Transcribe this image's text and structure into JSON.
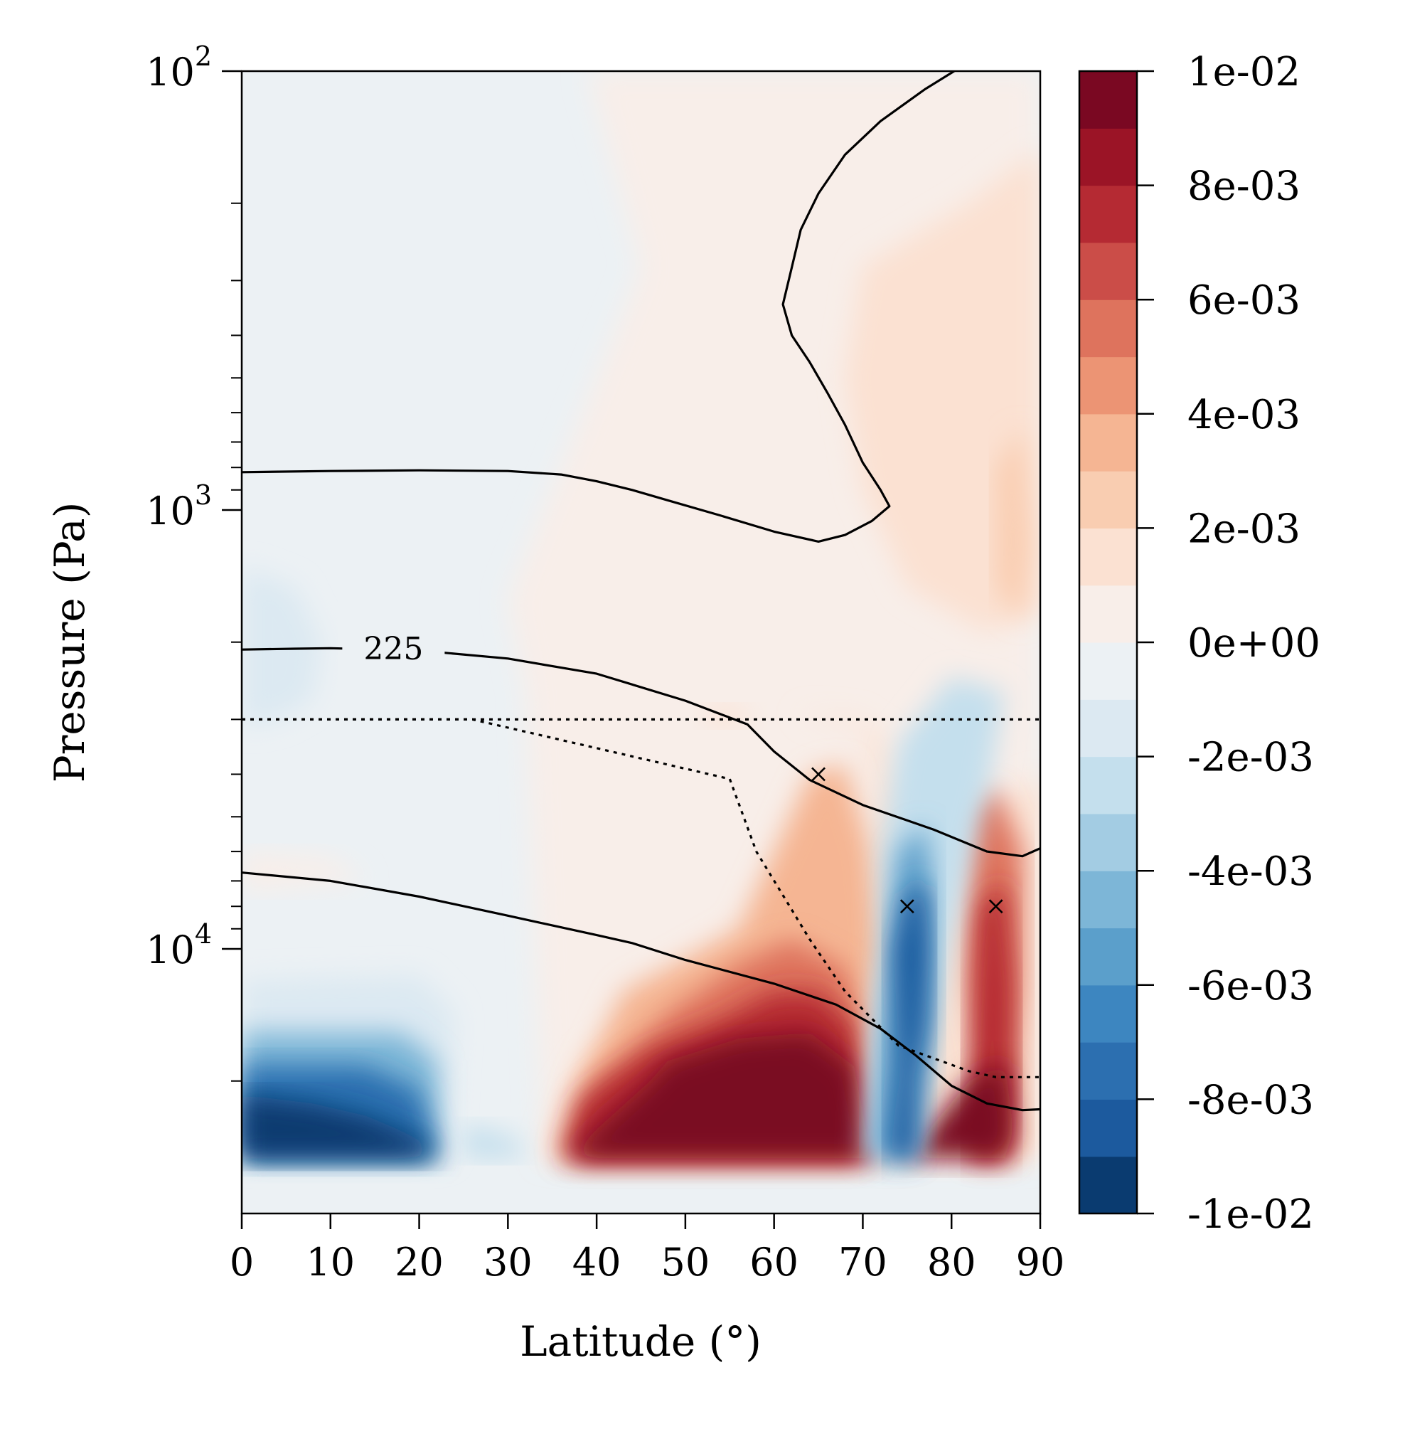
{
  "chart_data": {
    "type": "heatmap",
    "title": "",
    "xlabel": "Latitude (°)",
    "ylabel": "Pressure (Pa)",
    "xlim": [
      0,
      90
    ],
    "ylim": [
      100,
      30000
    ],
    "y_scale": "log",
    "y_inverted": true,
    "x_ticks": [
      "0",
      "10",
      "20",
      "30",
      "40",
      "50",
      "60",
      "70",
      "80",
      "90"
    ],
    "y_ticks": [
      {
        "value": 100,
        "base": "10",
        "exp": "2"
      },
      {
        "value": 1000,
        "base": "10",
        "exp": "3"
      },
      {
        "value": 10000,
        "base": "10",
        "exp": "4"
      }
    ],
    "colorbar": {
      "colormap": "RdBu_r",
      "range": [
        -0.01,
        0.01
      ],
      "levels": 20,
      "tick_labels": [
        "1e-02",
        "8e-03",
        "6e-03",
        "4e-03",
        "2e-03",
        "0e+00",
        "-2e-03",
        "-4e-03",
        "-6e-03",
        "-8e-03",
        "-1e-02"
      ],
      "level_colors": [
        "#0a3b70",
        "#1c5a9e",
        "#2c6fb0",
        "#3d86c0",
        "#5b9fcb",
        "#7db6d7",
        "#a3cce3",
        "#c4dfed",
        "#dce9f2",
        "#ecf1f4",
        "#f8eee9",
        "#fbe1d2",
        "#f9cdb1",
        "#f5b593",
        "#ec9474",
        "#de735d",
        "#cb4d48",
        "#b52a33",
        "#9b1426",
        "#7a0822"
      ]
    },
    "contours": {
      "label": "225",
      "lines": [
        {
          "points": [
            [
              0,
              820
            ],
            [
              10,
              815
            ],
            [
              20,
              812
            ],
            [
              30,
              815
            ],
            [
              36,
              830
            ],
            [
              40,
              860
            ],
            [
              44,
              900
            ],
            [
              48,
              950
            ],
            [
              54,
              1030
            ],
            [
              60,
              1120
            ],
            [
              65,
              1180
            ],
            [
              68,
              1140
            ],
            [
              71,
              1060
            ],
            [
              73,
              980
            ],
            [
              72,
              900
            ],
            [
              70,
              780
            ],
            [
              68,
              640
            ],
            [
              66,
              540
            ],
            [
              64,
              460
            ],
            [
              62,
              400
            ],
            [
              61,
              340
            ],
            [
              62,
              280
            ],
            [
              63,
              230
            ],
            [
              65,
              190
            ],
            [
              68,
              155
            ],
            [
              72,
              130
            ],
            [
              77,
              110
            ],
            [
              81,
              98
            ],
            [
              85,
              89
            ],
            [
              88,
              87
            ],
            [
              90,
              88
            ]
          ]
        },
        {
          "points": [
            [
              0,
              2080
            ],
            [
              6,
              2070
            ],
            [
              10,
              2065
            ],
            [
              20,
              2090
            ],
            [
              30,
              2180
            ],
            [
              40,
              2360
            ],
            [
              50,
              2720
            ],
            [
              57,
              3080
            ],
            [
              60,
              3550
            ],
            [
              64,
              4120
            ],
            [
              70,
              4700
            ],
            [
              78,
              5350
            ],
            [
              84,
              6000
            ],
            [
              88,
              6150
            ],
            [
              90,
              5900
            ]
          ]
        },
        {
          "points": [
            [
              0,
              6700
            ],
            [
              10,
              7000
            ],
            [
              20,
              7600
            ],
            [
              30,
              8400
            ],
            [
              40,
              9300
            ],
            [
              44,
              9700
            ],
            [
              50,
              10600
            ],
            [
              60,
              12000
            ],
            [
              67,
              13400
            ],
            [
              72,
              15200
            ],
            [
              76,
              17500
            ],
            [
              80,
              20500
            ],
            [
              84,
              22500
            ],
            [
              88,
              23300
            ],
            [
              90,
              23200
            ]
          ]
        }
      ]
    },
    "dashed_lines": [
      {
        "points": [
          [
            0,
            3000
          ],
          [
            90,
            3000
          ]
        ]
      },
      {
        "points": [
          [
            0,
            3000
          ],
          [
            26,
            3000
          ],
          [
            55,
            4100
          ],
          [
            58,
            6000
          ],
          [
            64,
            9500
          ],
          [
            68,
            12500
          ],
          [
            74,
            16600
          ],
          [
            82,
            19000
          ],
          [
            85,
            19600
          ],
          [
            90,
            19600
          ]
        ]
      }
    ],
    "markers": [
      {
        "lat": 65,
        "pressure": 4000
      },
      {
        "lat": 75,
        "pressure": 8000
      },
      {
        "lat": 85,
        "pressure": 8000
      }
    ]
  }
}
